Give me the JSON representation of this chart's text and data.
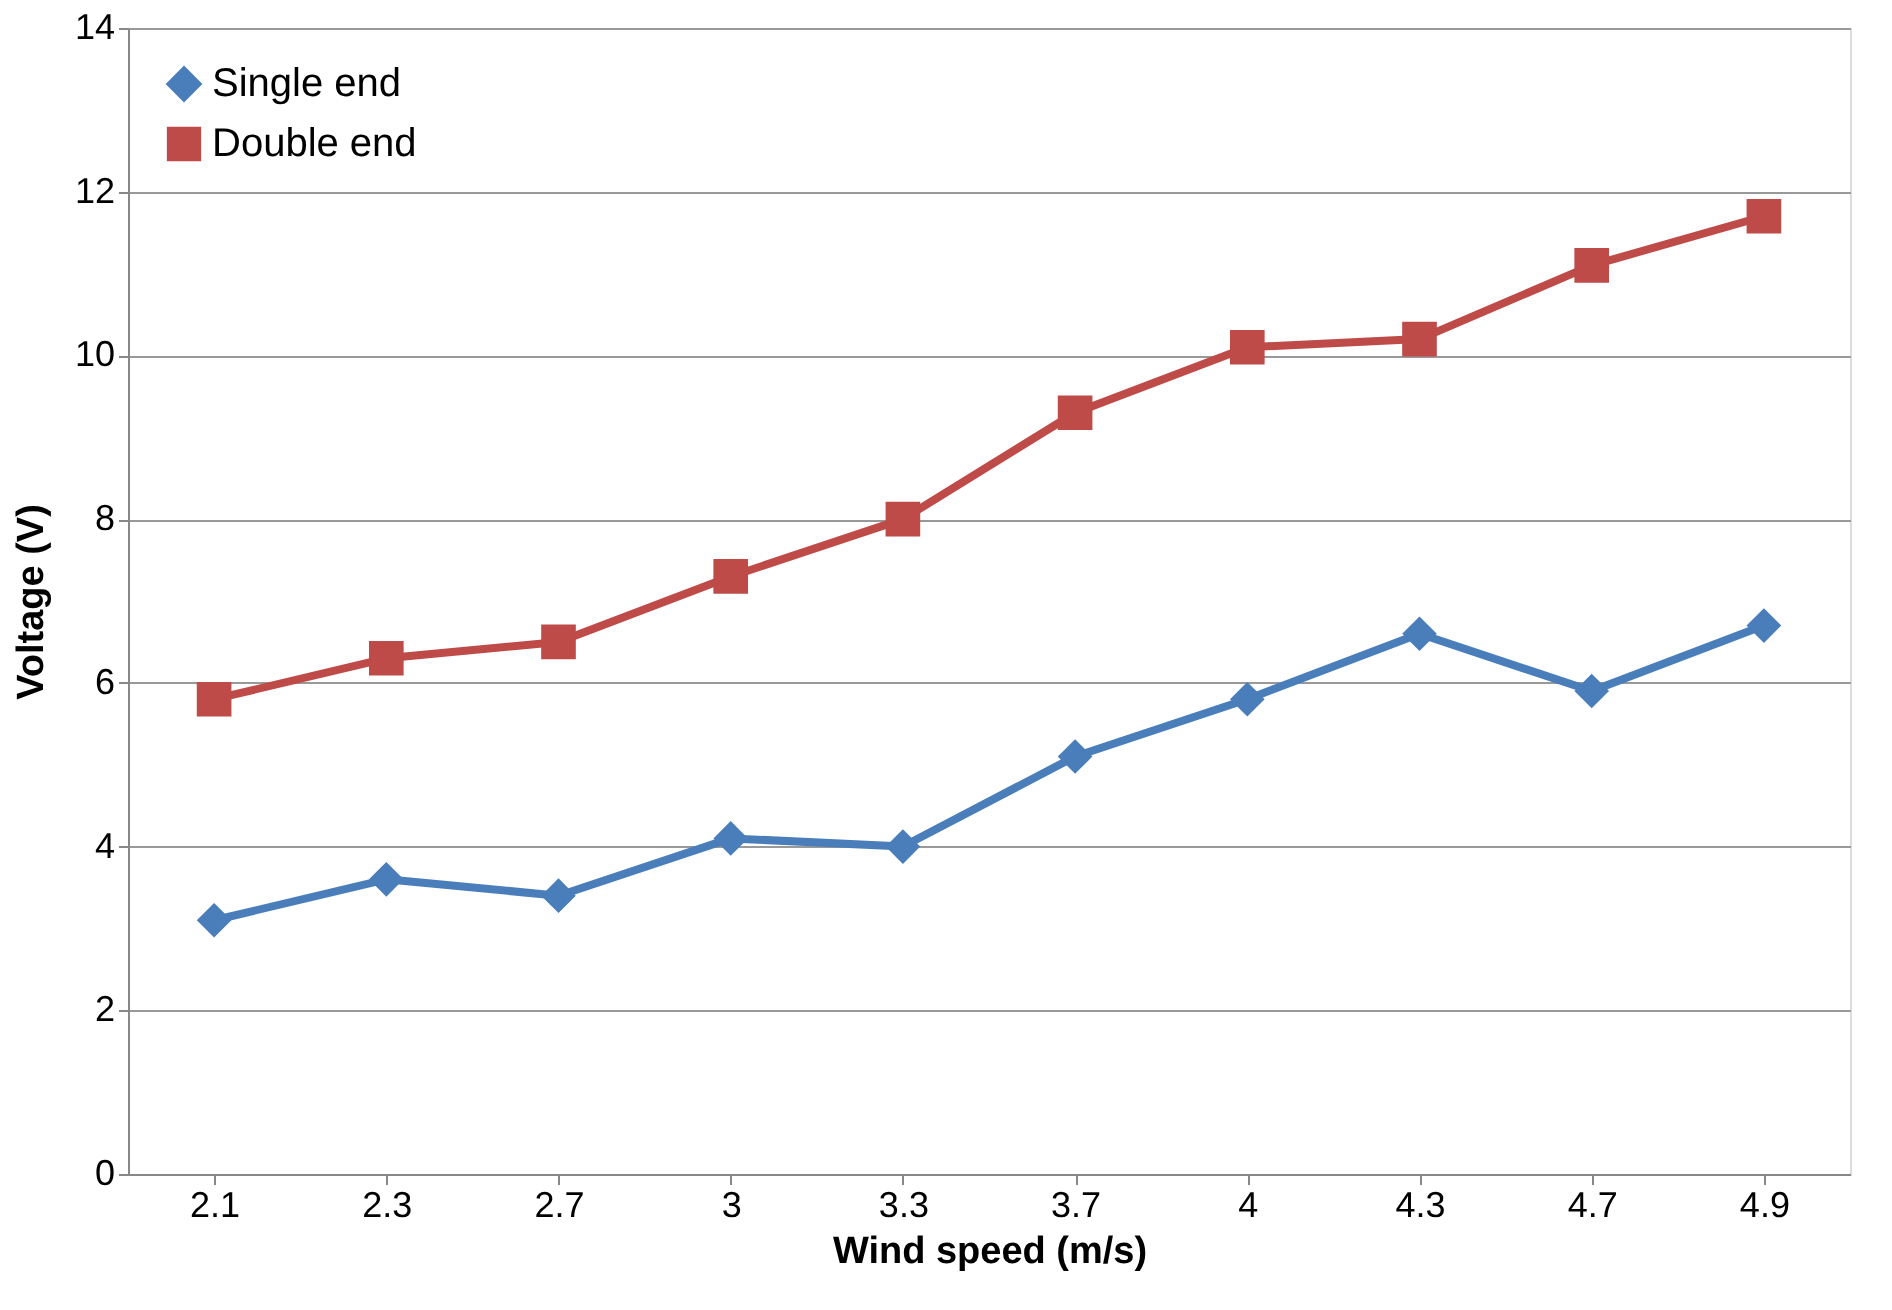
{
  "chart_data": {
    "type": "line",
    "xlabel": "Wind speed (m/s)",
    "ylabel": "Voltage (V)",
    "categories": [
      "2.1",
      "2.3",
      "2.7",
      "3",
      "3.3",
      "3.7",
      "4",
      "4.3",
      "4.7",
      "4.9"
    ],
    "series": [
      {
        "name": "Single end",
        "color": "#4a7ebb",
        "marker": "diamond",
        "values": [
          3.1,
          3.6,
          3.4,
          4.1,
          4.0,
          5.1,
          5.8,
          6.6,
          5.9,
          6.7
        ]
      },
      {
        "name": "Double end",
        "color": "#be4b48",
        "marker": "square",
        "values": [
          5.8,
          6.3,
          6.5,
          7.3,
          8.0,
          9.3,
          10.1,
          10.2,
          11.1,
          11.7
        ]
      }
    ],
    "ylim": [
      0,
      14
    ],
    "yticks": [
      0,
      2,
      4,
      6,
      8,
      10,
      12,
      14
    ],
    "grid": "y",
    "legend": "top left",
    "line_style": "solid"
  }
}
